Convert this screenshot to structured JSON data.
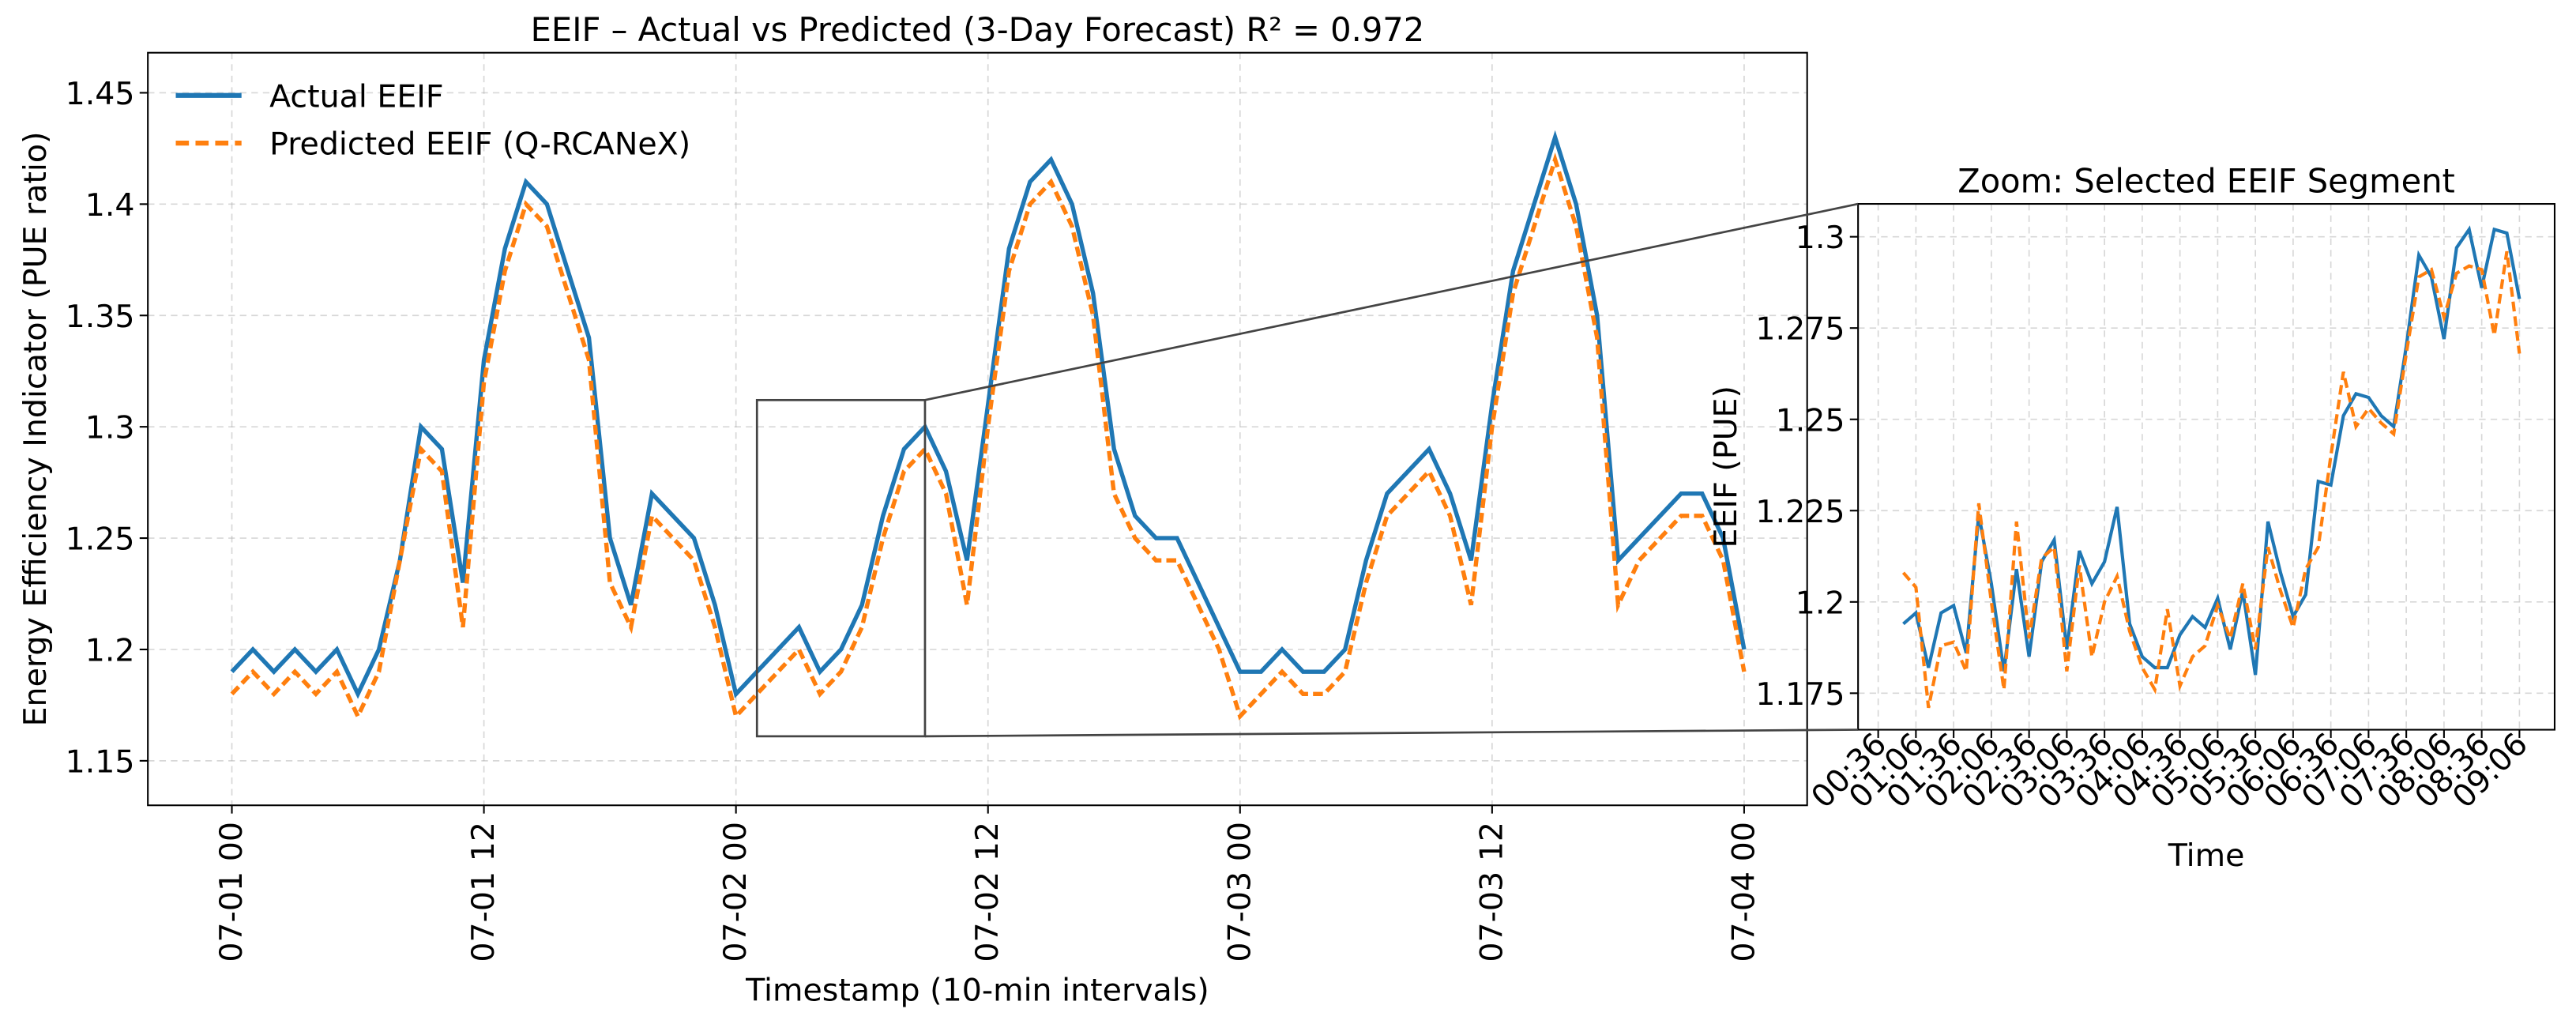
{
  "chart_data": [
    {
      "type": "line",
      "title": "EEIF – Actual vs Predicted (3-Day Forecast)   R² = 0.972",
      "xlabel": "Timestamp (10-min intervals)",
      "ylabel": "Energy Efficiency Indicator (PUE ratio)",
      "x": [
        "07-01 00",
        "07-01 01",
        "07-01 02",
        "07-01 03",
        "07-01 04",
        "07-01 05",
        "07-01 06",
        "07-01 07",
        "07-01 08",
        "07-01 09",
        "07-01 10",
        "07-01 11",
        "07-01 12",
        "07-01 13",
        "07-01 14",
        "07-01 15",
        "07-01 16",
        "07-01 17",
        "07-01 18",
        "07-01 19",
        "07-01 20",
        "07-01 21",
        "07-01 22",
        "07-01 23",
        "07-02 00",
        "07-02 01",
        "07-02 02",
        "07-02 03",
        "07-02 04",
        "07-02 05",
        "07-02 06",
        "07-02 07",
        "07-02 08",
        "07-02 09",
        "07-02 10",
        "07-02 11",
        "07-02 12",
        "07-02 13",
        "07-02 14",
        "07-02 15",
        "07-02 16",
        "07-02 17",
        "07-02 18",
        "07-02 19",
        "07-02 20",
        "07-02 21",
        "07-02 22",
        "07-02 23",
        "07-03 00",
        "07-03 01",
        "07-03 02",
        "07-03 03",
        "07-03 04",
        "07-03 05",
        "07-03 06",
        "07-03 07",
        "07-03 08",
        "07-03 09",
        "07-03 10",
        "07-03 11",
        "07-03 12",
        "07-03 13",
        "07-03 14",
        "07-03 15",
        "07-03 16",
        "07-03 17",
        "07-03 18",
        "07-03 19",
        "07-03 20",
        "07-03 21",
        "07-03 22",
        "07-03 23",
        "07-04 00"
      ],
      "series": [
        {
          "name": "Actual EEIF",
          "color": "#1f77b4",
          "style": "solid",
          "values": [
            1.19,
            1.2,
            1.19,
            1.2,
            1.19,
            1.2,
            1.18,
            1.2,
            1.24,
            1.3,
            1.29,
            1.23,
            1.33,
            1.38,
            1.41,
            1.4,
            1.37,
            1.34,
            1.25,
            1.22,
            1.27,
            1.26,
            1.25,
            1.22,
            1.18,
            1.19,
            1.2,
            1.21,
            1.19,
            1.2,
            1.22,
            1.26,
            1.29,
            1.3,
            1.28,
            1.24,
            1.31,
            1.38,
            1.41,
            1.42,
            1.4,
            1.36,
            1.29,
            1.26,
            1.25,
            1.25,
            1.23,
            1.21,
            1.19,
            1.19,
            1.2,
            1.19,
            1.19,
            1.2,
            1.24,
            1.27,
            1.28,
            1.29,
            1.27,
            1.24,
            1.31,
            1.37,
            1.4,
            1.43,
            1.4,
            1.35,
            1.24,
            1.25,
            1.26,
            1.27,
            1.27,
            1.25,
            1.2
          ]
        },
        {
          "name": "Predicted EEIF (Q-RCANeX)",
          "color": "#ff7f0e",
          "style": "dashed",
          "values": [
            1.18,
            1.19,
            1.18,
            1.19,
            1.18,
            1.19,
            1.17,
            1.19,
            1.24,
            1.29,
            1.28,
            1.21,
            1.32,
            1.37,
            1.4,
            1.39,
            1.36,
            1.33,
            1.23,
            1.21,
            1.26,
            1.25,
            1.24,
            1.21,
            1.17,
            1.18,
            1.19,
            1.2,
            1.18,
            1.19,
            1.21,
            1.25,
            1.28,
            1.29,
            1.27,
            1.22,
            1.3,
            1.37,
            1.4,
            1.41,
            1.39,
            1.35,
            1.27,
            1.25,
            1.24,
            1.24,
            1.22,
            1.2,
            1.17,
            1.18,
            1.19,
            1.18,
            1.18,
            1.19,
            1.23,
            1.26,
            1.27,
            1.28,
            1.26,
            1.22,
            1.3,
            1.36,
            1.39,
            1.42,
            1.39,
            1.34,
            1.22,
            1.24,
            1.25,
            1.26,
            1.26,
            1.24,
            1.19
          ]
        }
      ],
      "xlim": [
        "06-30 20",
        "07-04 03"
      ],
      "xticks": [
        "07-01 00",
        "07-01 12",
        "07-02 00",
        "07-02 12",
        "07-03 00",
        "07-03 12",
        "07-04 00"
      ],
      "ylim": [
        1.13,
        1.468
      ],
      "yticks": [
        1.15,
        1.2,
        1.25,
        1.3,
        1.35,
        1.4,
        1.45
      ],
      "grid": true,
      "legend": "upper left",
      "zoom_box": {
        "xlim": [
          "07-02 01",
          "07-02 09"
        ],
        "ylim": [
          1.161,
          1.312
        ]
      }
    },
    {
      "type": "line",
      "title": "Zoom: Selected EEIF Segment",
      "xlabel": "Time",
      "ylabel": "EEIF (PUE)",
      "x": [
        "00:56",
        "01:06",
        "01:16",
        "01:26",
        "01:36",
        "01:46",
        "01:56",
        "02:06",
        "02:16",
        "02:26",
        "02:36",
        "02:46",
        "02:56",
        "03:06",
        "03:16",
        "03:26",
        "03:36",
        "03:46",
        "03:56",
        "04:06",
        "04:16",
        "04:26",
        "04:36",
        "04:46",
        "04:56",
        "05:06",
        "05:16",
        "05:26",
        "05:36",
        "05:46",
        "05:56",
        "06:06",
        "06:16",
        "06:26",
        "06:36",
        "06:46",
        "06:56",
        "07:06",
        "07:16",
        "07:26",
        "07:36",
        "07:46",
        "07:56",
        "08:06",
        "08:16",
        "08:26",
        "08:36",
        "08:46",
        "08:56",
        "09:06"
      ],
      "series": [
        {
          "color": "#1f77b4",
          "style": "solid",
          "values": [
            1.194,
            1.197,
            1.182,
            1.197,
            1.199,
            1.186,
            1.224,
            1.205,
            1.181,
            1.209,
            1.185,
            1.211,
            1.217,
            1.187,
            1.214,
            1.205,
            1.211,
            1.226,
            1.194,
            1.185,
            1.182,
            1.182,
            1.191,
            1.196,
            1.193,
            1.201,
            1.187,
            1.203,
            1.18,
            1.222,
            1.208,
            1.196,
            1.202,
            1.233,
            1.232,
            1.251,
            1.257,
            1.256,
            1.251,
            1.248,
            1.27,
            1.295,
            1.289,
            1.272,
            1.297,
            1.302,
            1.286,
            1.302,
            1.301,
            1.283
          ]
        },
        {
          "color": "#ff7f0e",
          "style": "dashed",
          "values": [
            1.208,
            1.204,
            1.171,
            1.188,
            1.189,
            1.181,
            1.227,
            1.2,
            1.176,
            1.222,
            1.19,
            1.212,
            1.215,
            1.181,
            1.21,
            1.185,
            1.2,
            1.207,
            1.192,
            1.182,
            1.176,
            1.198,
            1.177,
            1.185,
            1.188,
            1.199,
            1.19,
            1.205,
            1.187,
            1.215,
            1.203,
            1.193,
            1.209,
            1.215,
            1.24,
            1.263,
            1.248,
            1.253,
            1.249,
            1.246,
            1.268,
            1.289,
            1.291,
            1.278,
            1.29,
            1.292,
            1.291,
            1.273,
            1.296,
            1.268
          ]
        }
      ],
      "xlim": [
        "00:20",
        "09:34"
      ],
      "xticks": [
        "00:36",
        "01:06",
        "01:36",
        "02:06",
        "02:36",
        "03:06",
        "03:36",
        "04:06",
        "04:36",
        "05:06",
        "05:36",
        "06:06",
        "06:36",
        "07:06",
        "07:36",
        "08:06",
        "08:36",
        "09:06"
      ],
      "ylim": [
        1.165,
        1.309
      ],
      "yticks": [
        1.175,
        1.2,
        1.225,
        1.25,
        1.275,
        1.3
      ],
      "grid": true
    }
  ]
}
